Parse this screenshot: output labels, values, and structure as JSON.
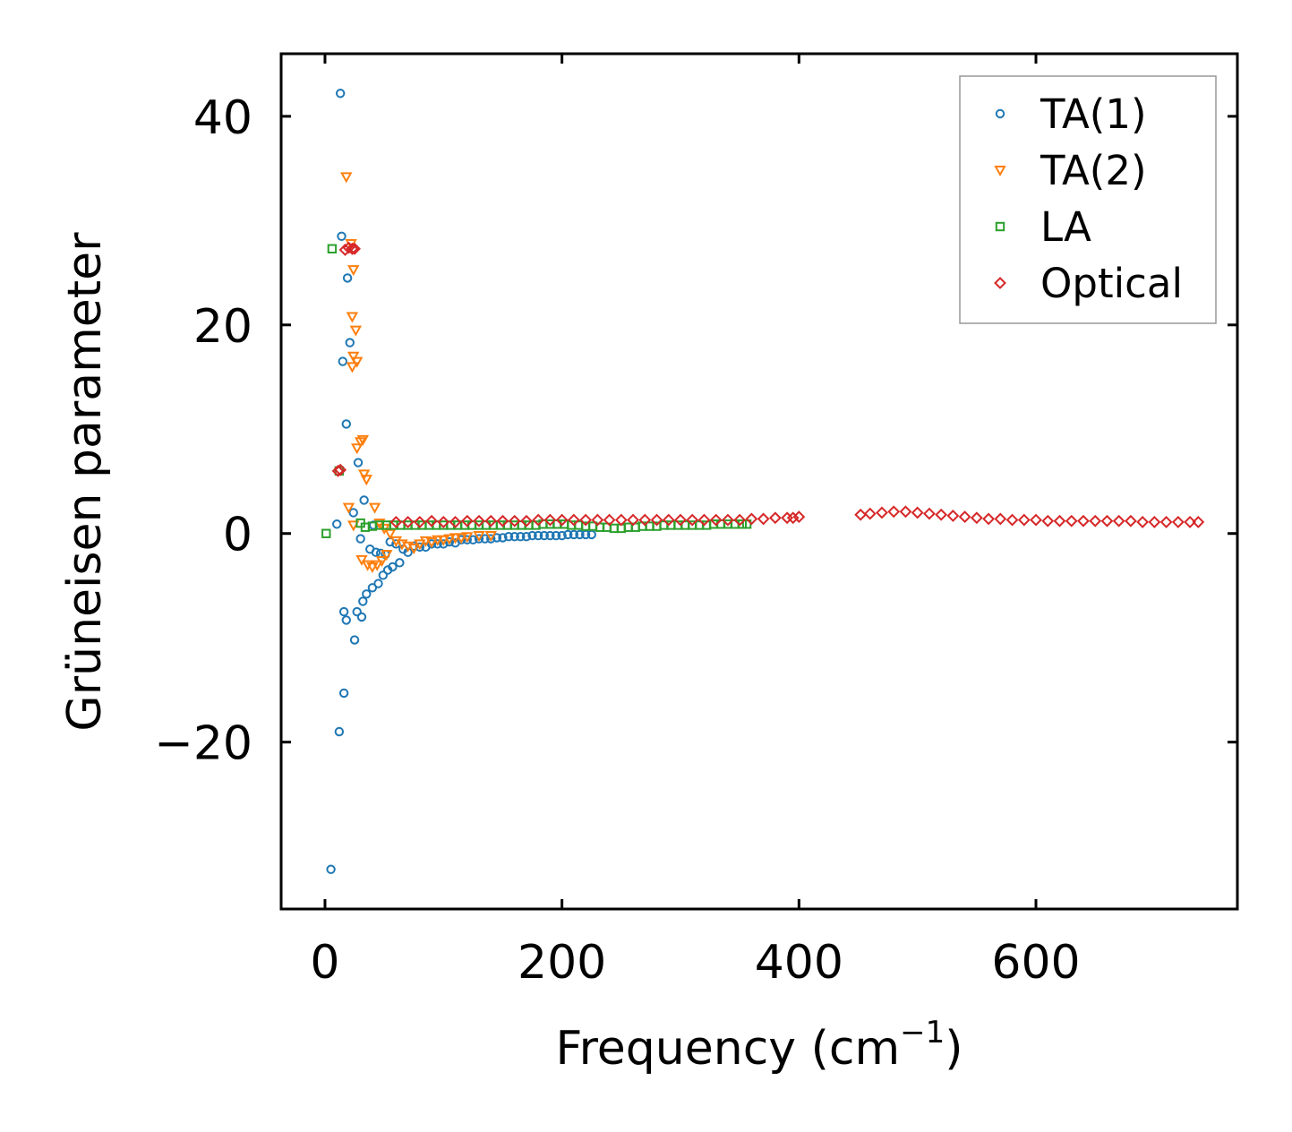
{
  "chart_data": {
    "type": "scatter",
    "title": "",
    "xlabel": "Frequency (cm",
    "xlabel_sup": "−1",
    "xlabel_tail": ")",
    "ylabel": "Grüneisen parameter",
    "xlim": [
      -37,
      770
    ],
    "ylim": [
      -36,
      46
    ],
    "xticks": [
      0,
      200,
      400,
      600
    ],
    "xtick_labels": [
      "0",
      "200",
      "400",
      "600"
    ],
    "yticks": [
      -20,
      0,
      20,
      40
    ],
    "ytick_labels": [
      "−20",
      "0",
      "20",
      "40"
    ],
    "grid": false,
    "legend_position": "top-right",
    "series": [
      {
        "name": "TA(1)",
        "marker": "circle",
        "color": "#1f77b4",
        "points": [
          [
            5,
            -32.2
          ],
          [
            10,
            0.9
          ],
          [
            12,
            -19.0
          ],
          [
            13,
            42.2
          ],
          [
            14,
            28.5
          ],
          [
            15,
            16.5
          ],
          [
            16,
            -15.3
          ],
          [
            16,
            -7.5
          ],
          [
            18,
            -8.3
          ],
          [
            18,
            10.5
          ],
          [
            19,
            24.5
          ],
          [
            21,
            18.3
          ],
          [
            24,
            2.0
          ],
          [
            25,
            -10.2
          ],
          [
            27,
            -7.5
          ],
          [
            28,
            6.8
          ],
          [
            30,
            -0.5
          ],
          [
            31,
            -8.0
          ],
          [
            32,
            -6.5
          ],
          [
            33,
            3.2
          ],
          [
            35,
            -5.8
          ],
          [
            38,
            -1.5
          ],
          [
            40,
            -5.2
          ],
          [
            41,
            0.8
          ],
          [
            43,
            -1.8
          ],
          [
            45,
            -4.8
          ],
          [
            47,
            -1.9
          ],
          [
            49,
            -4.0
          ],
          [
            51,
            -2.0
          ],
          [
            53,
            -3.5
          ],
          [
            55,
            -0.8
          ],
          [
            57,
            -3.2
          ],
          [
            60,
            -1.0
          ],
          [
            63,
            -2.8
          ],
          [
            66,
            -1.5
          ],
          [
            70,
            -1.8
          ],
          [
            75,
            -1.2
          ],
          [
            80,
            -1.3
          ],
          [
            85,
            -1.3
          ],
          [
            90,
            -1.0
          ],
          [
            95,
            -1.0
          ],
          [
            100,
            -1.0
          ],
          [
            105,
            -0.8
          ],
          [
            110,
            -0.9
          ],
          [
            115,
            -0.6
          ],
          [
            120,
            -0.6
          ],
          [
            125,
            -0.6
          ],
          [
            130,
            -0.5
          ],
          [
            135,
            -0.5
          ],
          [
            140,
            -0.5
          ],
          [
            145,
            -0.4
          ],
          [
            150,
            -0.4
          ],
          [
            155,
            -0.3
          ],
          [
            160,
            -0.3
          ],
          [
            165,
            -0.3
          ],
          [
            170,
            -0.3
          ],
          [
            175,
            -0.2
          ],
          [
            180,
            -0.2
          ],
          [
            185,
            -0.2
          ],
          [
            190,
            -0.2
          ],
          [
            195,
            -0.2
          ],
          [
            200,
            -0.2
          ],
          [
            205,
            -0.1
          ],
          [
            210,
            -0.1
          ],
          [
            215,
            -0.1
          ],
          [
            220,
            -0.1
          ],
          [
            225,
            -0.1
          ]
        ]
      },
      {
        "name": "TA(2)",
        "marker": "triangle-down",
        "color": "#ff7f0e",
        "points": [
          [
            18,
            34.2
          ],
          [
            22,
            27.8
          ],
          [
            24,
            25.3
          ],
          [
            23,
            20.8
          ],
          [
            26,
            19.5
          ],
          [
            24,
            17.0
          ],
          [
            27,
            16.5
          ],
          [
            23,
            16.0
          ],
          [
            20,
            2.5
          ],
          [
            24,
            0.8
          ],
          [
            27,
            8.2
          ],
          [
            30,
            8.8
          ],
          [
            32,
            9.0
          ],
          [
            33,
            5.7
          ],
          [
            35,
            5.2
          ],
          [
            31,
            -2.5
          ],
          [
            36,
            -3.0
          ],
          [
            40,
            -3.2
          ],
          [
            44,
            -3.0
          ],
          [
            48,
            -2.6
          ],
          [
            52,
            -2.0
          ],
          [
            42,
            2.5
          ],
          [
            46,
            1.0
          ],
          [
            50,
            0.5
          ],
          [
            55,
            0.0
          ],
          [
            60,
            -0.7
          ],
          [
            65,
            -1.0
          ],
          [
            70,
            -1.2
          ],
          [
            75,
            -1.4
          ],
          [
            80,
            -1.0
          ],
          [
            85,
            -0.7
          ],
          [
            90,
            -0.8
          ],
          [
            95,
            -0.6
          ],
          [
            100,
            -0.6
          ],
          [
            105,
            -0.5
          ],
          [
            110,
            -0.4
          ],
          [
            115,
            -0.4
          ],
          [
            120,
            -0.3
          ],
          [
            130,
            -0.2
          ],
          [
            140,
            -0.2
          ]
        ]
      },
      {
        "name": "LA",
        "marker": "square",
        "color": "#2ca02c",
        "points": [
          [
            1,
            0.0
          ],
          [
            6,
            27.3
          ],
          [
            12,
            6.0
          ],
          [
            30,
            1.0
          ],
          [
            34,
            0.6
          ],
          [
            40,
            0.7
          ],
          [
            46,
            0.8
          ],
          [
            52,
            0.8
          ],
          [
            58,
            0.8
          ],
          [
            64,
            0.8
          ],
          [
            70,
            0.8
          ],
          [
            76,
            0.8
          ],
          [
            82,
            0.8
          ],
          [
            88,
            0.8
          ],
          [
            94,
            0.8
          ],
          [
            100,
            0.8
          ],
          [
            106,
            0.8
          ],
          [
            112,
            0.8
          ],
          [
            118,
            0.8
          ],
          [
            124,
            0.8
          ],
          [
            130,
            0.8
          ],
          [
            136,
            0.8
          ],
          [
            142,
            0.8
          ],
          [
            148,
            0.8
          ],
          [
            154,
            0.8
          ],
          [
            160,
            0.8
          ],
          [
            166,
            0.8
          ],
          [
            172,
            0.8
          ],
          [
            178,
            0.8
          ],
          [
            184,
            0.9
          ],
          [
            190,
            0.9
          ],
          [
            196,
            0.9
          ],
          [
            202,
            0.9
          ],
          [
            208,
            0.8
          ],
          [
            214,
            0.8
          ],
          [
            220,
            0.7
          ],
          [
            226,
            0.7
          ],
          [
            232,
            0.6
          ],
          [
            238,
            0.6
          ],
          [
            244,
            0.5
          ],
          [
            250,
            0.5
          ],
          [
            256,
            0.6
          ],
          [
            262,
            0.6
          ],
          [
            268,
            0.7
          ],
          [
            274,
            0.7
          ],
          [
            280,
            0.7
          ],
          [
            286,
            0.8
          ],
          [
            292,
            0.8
          ],
          [
            298,
            0.8
          ],
          [
            304,
            0.8
          ],
          [
            310,
            0.8
          ],
          [
            316,
            0.8
          ],
          [
            322,
            0.8
          ],
          [
            328,
            0.9
          ],
          [
            334,
            0.9
          ],
          [
            340,
            0.9
          ],
          [
            346,
            0.9
          ],
          [
            352,
            0.9
          ],
          [
            356,
            0.9
          ]
        ]
      },
      {
        "name": "Optical",
        "marker": "diamond",
        "color": "#d62728",
        "points": [
          [
            17,
            27.2
          ],
          [
            20,
            27.4
          ],
          [
            23,
            27.3
          ],
          [
            25,
            27.3
          ],
          [
            11,
            6.0
          ],
          [
            13,
            6.1
          ],
          [
            60,
            1.1
          ],
          [
            70,
            1.1
          ],
          [
            80,
            1.1
          ],
          [
            90,
            1.2
          ],
          [
            100,
            1.1
          ],
          [
            110,
            1.1
          ],
          [
            120,
            1.2
          ],
          [
            130,
            1.2
          ],
          [
            140,
            1.2
          ],
          [
            150,
            1.2
          ],
          [
            160,
            1.2
          ],
          [
            170,
            1.2
          ],
          [
            180,
            1.3
          ],
          [
            190,
            1.3
          ],
          [
            200,
            1.3
          ],
          [
            210,
            1.3
          ],
          [
            220,
            1.3
          ],
          [
            230,
            1.3
          ],
          [
            240,
            1.3
          ],
          [
            250,
            1.3
          ],
          [
            260,
            1.3
          ],
          [
            270,
            1.3
          ],
          [
            280,
            1.3
          ],
          [
            290,
            1.3
          ],
          [
            300,
            1.3
          ],
          [
            310,
            1.3
          ],
          [
            320,
            1.3
          ],
          [
            330,
            1.3
          ],
          [
            340,
            1.3
          ],
          [
            350,
            1.3
          ],
          [
            360,
            1.4
          ],
          [
            370,
            1.4
          ],
          [
            380,
            1.5
          ],
          [
            390,
            1.5
          ],
          [
            395,
            1.5
          ],
          [
            400,
            1.6
          ],
          [
            452,
            1.8
          ],
          [
            460,
            1.9
          ],
          [
            470,
            2.0
          ],
          [
            480,
            2.1
          ],
          [
            490,
            2.1
          ],
          [
            500,
            2.0
          ],
          [
            510,
            1.9
          ],
          [
            520,
            1.8
          ],
          [
            530,
            1.7
          ],
          [
            540,
            1.6
          ],
          [
            550,
            1.5
          ],
          [
            560,
            1.4
          ],
          [
            570,
            1.4
          ],
          [
            580,
            1.3
          ],
          [
            590,
            1.3
          ],
          [
            600,
            1.3
          ],
          [
            610,
            1.2
          ],
          [
            620,
            1.2
          ],
          [
            630,
            1.2
          ],
          [
            640,
            1.2
          ],
          [
            650,
            1.2
          ],
          [
            660,
            1.2
          ],
          [
            670,
            1.2
          ],
          [
            680,
            1.2
          ],
          [
            690,
            1.1
          ],
          [
            700,
            1.1
          ],
          [
            710,
            1.1
          ],
          [
            720,
            1.1
          ],
          [
            730,
            1.1
          ],
          [
            737,
            1.1
          ]
        ]
      }
    ]
  }
}
